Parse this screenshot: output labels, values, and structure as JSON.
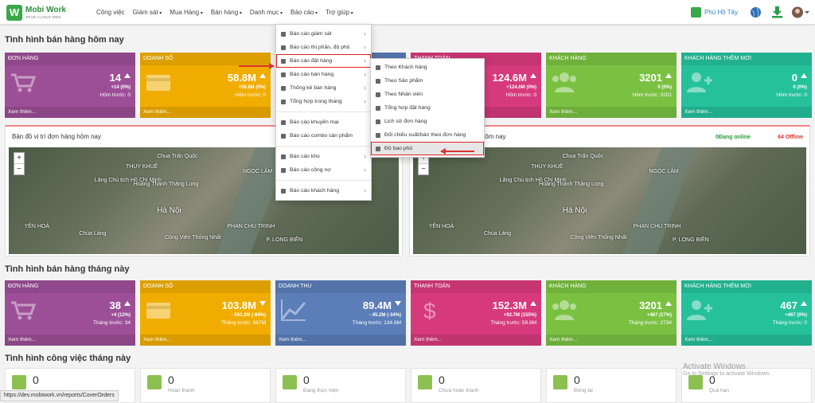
{
  "nav": {
    "logo_title": "Mobi Work",
    "logo_subtitle": "TRUE CLOUD DMS",
    "menu": [
      "Công việc",
      "Giám sát",
      "Mua Hàng",
      "Bán hàng",
      "Danh mục",
      "Báo cáo",
      "Trợ giúp"
    ],
    "store": "Phú Hồ Tây"
  },
  "today": {
    "title": "Tình hình bán hàng hôm nay",
    "cards": [
      {
        "label": "ĐƠN HÀNG",
        "value": "14",
        "delta": "+14 (0%)",
        "previous": "Hôm trước: 0",
        "more": "Xem thêm...",
        "color": "#9c4f96",
        "icon": "cart",
        "trend": "up"
      },
      {
        "label": "DOANH SỐ",
        "value": "58.8M",
        "delta": "+58.8M (0%)",
        "previous": "Hôm trước: 0",
        "more": "Xem thêm...",
        "color": "#f0ad00",
        "icon": "card",
        "trend": "up"
      },
      {
        "color": "#5b7db8",
        "icon": "chart"
      },
      {
        "label": "THANH TOÁN",
        "value": "124.6M",
        "delta": "+124.6M (0%)",
        "previous": "Hôm trước: 0",
        "more": "Xem thêm...",
        "color": "#d63a7c",
        "icon": "dollar",
        "trend": "up"
      },
      {
        "label": "KHÁCH HÀNG",
        "value": "3201",
        "delta": "0 (0%)",
        "previous": "Hôm trước: 3201",
        "more": "Xem thêm...",
        "color": "#7ac142",
        "icon": "people",
        "trend": "up"
      },
      {
        "label": "KHÁCH HÀNG THÊM MỚI",
        "value": "0",
        "delta": "0 (0%)",
        "previous": "Hôm trước: 0",
        "more": "Xem thêm...",
        "color": "#25c19b",
        "icon": "adduser",
        "trend": "up"
      }
    ]
  },
  "maps": {
    "left_title": "Bản đồ vị trí đơn hàng hôm nay",
    "right_title": "Bản đồ vị trí nhân viên hôm nay",
    "online": "0Đang online",
    "offline": "64 Offline",
    "places": [
      "Chua Trấn Quốc",
      "THỤY KHUÊ",
      "Lăng Chủ tịch Hồ Chí Minh",
      "Hoàng Thành Thăng Long",
      "Hà Nội",
      "YÊN HOÀ",
      "Chùa Láng",
      "NGỌC LÂM",
      "PHAN CHU TRINH",
      "Công Viên Thống Nhất",
      "P. LONG BIÊN"
    ]
  },
  "month": {
    "title": "Tình hình bán hàng tháng này",
    "cards": [
      {
        "label": "ĐƠN HÀNG",
        "value": "38",
        "delta": "+4 (12%)",
        "previous": "Tháng trước: 34",
        "more": "Xem thêm...",
        "color": "#9c4f96",
        "icon": "cart",
        "trend": "up"
      },
      {
        "label": "DOANH SỐ",
        "value": "103.8M",
        "delta": "- 563.2M (-84%)",
        "previous": "Tháng trước: 667M",
        "more": "Xem thêm...",
        "color": "#f0ad00",
        "icon": "card",
        "trend": "down"
      },
      {
        "label": "DOANH THU",
        "value": "89.4M",
        "delta": "- 45.2M (-34%)",
        "previous": "Tháng trước: 134.6M",
        "more": "Xem thêm...",
        "color": "#5b7db8",
        "icon": "chart",
        "trend": "down"
      },
      {
        "label": "THANH TOÁN",
        "value": "152.3M",
        "delta": "+92.7M (155%)",
        "previous": "Tháng trước: 59.6M",
        "more": "Xem thêm...",
        "color": "#d63a7c",
        "icon": "dollar",
        "trend": "up"
      },
      {
        "label": "KHÁCH HÀNG",
        "value": "3201",
        "delta": "+467 (17%)",
        "previous": "Tháng trước: 2734",
        "more": "Xem thêm...",
        "color": "#7ac142",
        "icon": "people",
        "trend": "up"
      },
      {
        "label": "KHÁCH HÀNG THÊM MỚI",
        "value": "467",
        "delta": "+467 (0%)",
        "previous": "Tháng trước: 0",
        "more": "Xem thêm...",
        "color": "#25c19b",
        "icon": "adduser",
        "trend": "up"
      }
    ]
  },
  "work": {
    "title": "Tình hình công việc tháng này",
    "cards": [
      {
        "value": "0"
      },
      {
        "value": "0",
        "label": "Hoàn thành"
      },
      {
        "value": "0",
        "label": "Đang thực hiện"
      },
      {
        "value": "0",
        "label": "Chưa hoàn thành"
      },
      {
        "value": "0",
        "label": "Đóng lại"
      },
      {
        "value": "0",
        "label": "Quá hạn"
      }
    ]
  },
  "report_menu": {
    "groups": [
      [
        {
          "label": "Báo cáo giám sát",
          "submenu": true
        },
        {
          "label": "Báo cáo thị phần, độ phủ",
          "submenu": true
        },
        {
          "label": "Báo cáo đặt hàng",
          "submenu": true,
          "highlighted": true
        },
        {
          "label": "Báo cáo bán hàng",
          "submenu": true
        },
        {
          "label": "Thống kê bán hàng",
          "submenu": true
        },
        {
          "label": "Tổng hợp trong tháng",
          "submenu": true
        }
      ],
      [
        {
          "label": "Báo cáo khuyến mại"
        },
        {
          "label": "Báo cáo combo sản phẩm"
        }
      ],
      [
        {
          "label": "Báo cáo kho",
          "submenu": true
        },
        {
          "label": "Báo cáo công nợ",
          "submenu": true
        }
      ],
      [
        {
          "label": "Báo cáo khách hàng",
          "submenu": true
        }
      ]
    ]
  },
  "order_submenu": [
    {
      "label": "Theo Khách hàng"
    },
    {
      "label": "Theo Sản phẩm"
    },
    {
      "label": "Theo Nhân viên"
    },
    {
      "label": "Tổng hợp đặt hàng"
    },
    {
      "label": "Lịch sử đơn hàng"
    },
    {
      "label": "Đối chiếu xuất/bán theo đơn hàng"
    },
    {
      "label": "Độ bao phủ",
      "highlighted": true
    }
  ],
  "status_bar": "https://dev.mobiwork.vn/reports/CoverOrders",
  "watermark": {
    "title": "Activate Windows",
    "text": "Go to Settings to activate Windows."
  }
}
